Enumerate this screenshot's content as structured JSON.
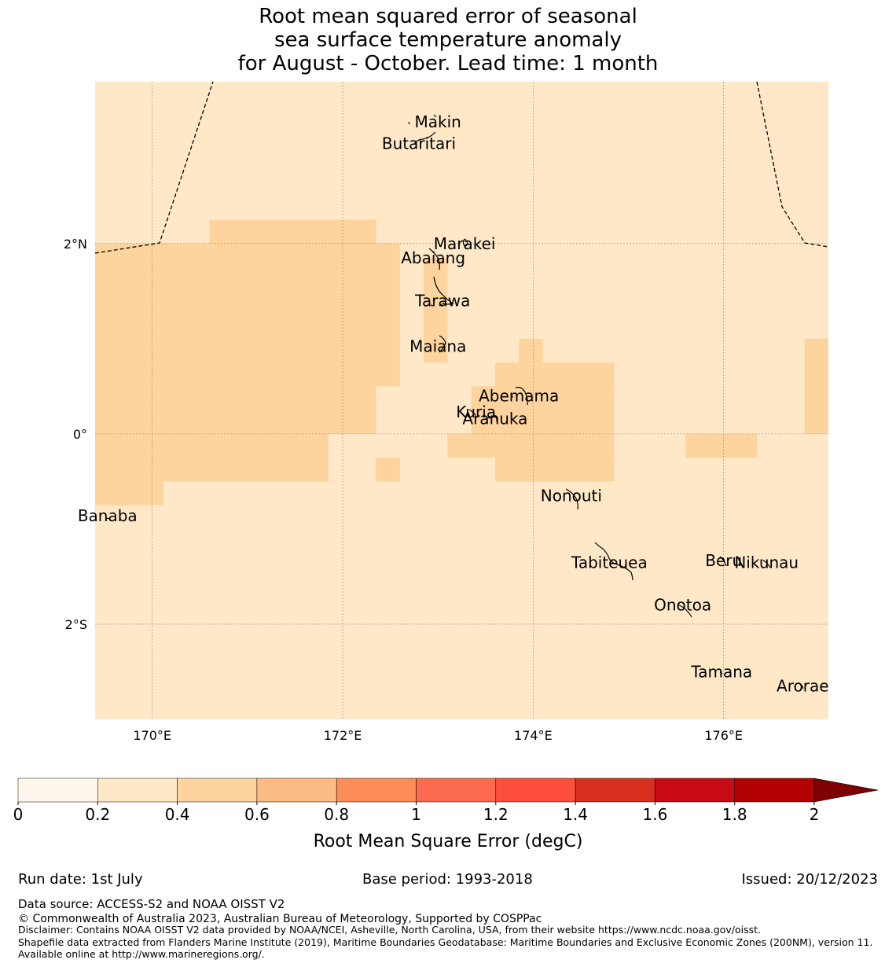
{
  "title": {
    "line1": "Root mean squared error of seasonal",
    "line2": "sea surface temperature anomaly",
    "line3": "for August - October. Lead time: 1 month"
  },
  "map": {
    "extent": {
      "lon": [
        169.4,
        177.1
      ],
      "lat": [
        -3.0,
        3.7
      ]
    },
    "ocean_color": "#fee8c8",
    "higher_color": "#fdd49e",
    "lat_labels": [
      {
        "lat": 2,
        "label": "2°N"
      },
      {
        "lat": 0,
        "label": "0°"
      },
      {
        "lat": -2,
        "label": "2°S"
      }
    ],
    "lon_labels": [
      {
        "lon": 170,
        "label": "170°E"
      },
      {
        "lon": 172,
        "label": "172°E"
      },
      {
        "lon": 174,
        "label": "174°E"
      },
      {
        "lon": 176,
        "label": "176°E"
      }
    ],
    "rmse_cells_0_4_to_0_6": [
      {
        "lon": [
          170.6,
          172.35
        ],
        "lat": [
          2.0,
          2.25
        ]
      },
      {
        "lon": [
          169.4,
          172.6
        ],
        "lat": [
          0.5,
          2.0
        ]
      },
      {
        "lon": [
          169.4,
          172.35
        ],
        "lat": [
          0.0,
          0.5
        ]
      },
      {
        "lon": [
          169.4,
          171.85
        ],
        "lat": [
          -0.5,
          0.0
        ]
      },
      {
        "lon": [
          169.4,
          170.12
        ],
        "lat": [
          -0.75,
          -0.5
        ]
      },
      {
        "lon": [
          172.35,
          172.6
        ],
        "lat": [
          -0.5,
          -0.25
        ]
      },
      {
        "lon": [
          172.85,
          173.1
        ],
        "lat": [
          0.75,
          1.85
        ]
      },
      {
        "lon": [
          173.85,
          174.1
        ],
        "lat": [
          0.75,
          1.0
        ]
      },
      {
        "lon": [
          173.6,
          174.85
        ],
        "lat": [
          0.5,
          0.75
        ]
      },
      {
        "lon": [
          173.35,
          174.85
        ],
        "lat": [
          0.0,
          0.5
        ]
      },
      {
        "lon": [
          173.1,
          174.85
        ],
        "lat": [
          -0.25,
          0.0
        ]
      },
      {
        "lon": [
          173.6,
          174.85
        ],
        "lat": [
          -0.5,
          -0.25
        ]
      },
      {
        "lon": [
          175.6,
          176.35
        ],
        "lat": [
          -0.25,
          0.0
        ]
      },
      {
        "lon": [
          176.85,
          177.1
        ],
        "lat": [
          0.0,
          1.0
        ]
      }
    ],
    "islands": [
      {
        "name": "Makin",
        "lon": 173.0,
        "lat": 3.28
      },
      {
        "name": "Butaritari",
        "lon": 172.8,
        "lat": 3.05
      },
      {
        "name": "Marakei",
        "lon": 173.28,
        "lat": 2.0
      },
      {
        "name": "Abaiang",
        "lon": 172.95,
        "lat": 1.85
      },
      {
        "name": "Tarawa",
        "lon": 173.05,
        "lat": 1.4
      },
      {
        "name": "Maiana",
        "lon": 173.0,
        "lat": 0.92
      },
      {
        "name": "Abemama",
        "lon": 173.85,
        "lat": 0.4
      },
      {
        "name": "Kuria",
        "lon": 173.4,
        "lat": 0.23
      },
      {
        "name": "Aranuka",
        "lon": 173.6,
        "lat": 0.16
      },
      {
        "name": "Nonouti",
        "lon": 174.4,
        "lat": -0.65
      },
      {
        "name": "Banaba",
        "lon": 169.53,
        "lat": -0.86
      },
      {
        "name": "Tabiteuea",
        "lon": 174.8,
        "lat": -1.35
      },
      {
        "name": "Beru",
        "lon": 176.0,
        "lat": -1.33
      },
      {
        "name": "Nikunau",
        "lon": 176.45,
        "lat": -1.35
      },
      {
        "name": "Onotoa",
        "lon": 175.57,
        "lat": -1.8
      },
      {
        "name": "Tamana",
        "lon": 175.98,
        "lat": -2.5
      },
      {
        "name": "Arorae",
        "lon": 176.83,
        "lat": -2.65
      }
    ]
  },
  "colorbar": {
    "label": "Root Mean Square Error (degC)",
    "ticks": [
      "0",
      "0.2",
      "0.4",
      "0.6",
      "0.8",
      "1",
      "1.2",
      "1.4",
      "1.6",
      "1.8",
      "2"
    ],
    "colors": [
      "#fff7ec",
      "#fee8c8",
      "#fdd49e",
      "#fdbb84",
      "#fc8d59",
      "#fc6a4f",
      "#fd4d3d",
      "#d7301f",
      "#c80b16",
      "#b30000"
    ],
    "extend_color": "#7f0000"
  },
  "footer": {
    "run_date": "Run date: 1st July",
    "base_period": "Base period: 1993-2018",
    "issued": "Issued: 20/12/2023",
    "data_source": "Data source: ACCESS-S2 and NOAA OISST V2",
    "copyright": "© Commonwealth of Australia 2023, Australian Bureau of Meteorology, Supported by COSPPac",
    "disclaimer": "Disclaimer: Contains NOAA OISST V2 data provided by NOAA/NCEI, Asheville, North Carolina, USA, from their website https://www.ncdc.noaa.gov/oisst.",
    "shapefile": "Shapefile data extracted from Flanders Marine Institute (2019), Maritime Boundaries Geodatabase: Maritime Boundaries and Exclusive Economic Zones (200NM), version 11. Available online at http://www.marineregions.org/."
  }
}
